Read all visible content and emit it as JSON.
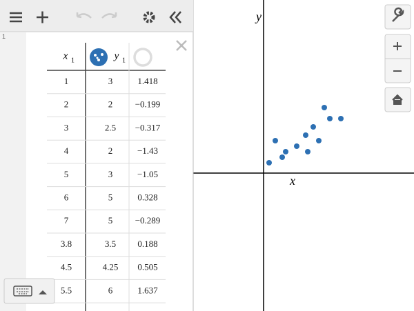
{
  "expression": {
    "line_number": "1",
    "table": {
      "headers": [
        {
          "var": "x",
          "sub": "1"
        },
        {
          "var": "y",
          "sub": "1"
        }
      ],
      "rows": [
        [
          1,
          3,
          "1.418"
        ],
        [
          2,
          2,
          "−0.199"
        ],
        [
          3,
          2.5,
          "−0.317"
        ],
        [
          4,
          2,
          "−1.43"
        ],
        [
          5,
          3,
          "−1.05"
        ],
        [
          6,
          5,
          "0.328"
        ],
        [
          7,
          5,
          "−0.289"
        ],
        [
          3.8,
          3.5,
          "0.188"
        ],
        [
          4.5,
          4.25,
          "0.505"
        ],
        [
          5.5,
          6,
          "1.637"
        ]
      ]
    }
  },
  "graph": {
    "x_label": "x",
    "y_label": "y"
  }
}
